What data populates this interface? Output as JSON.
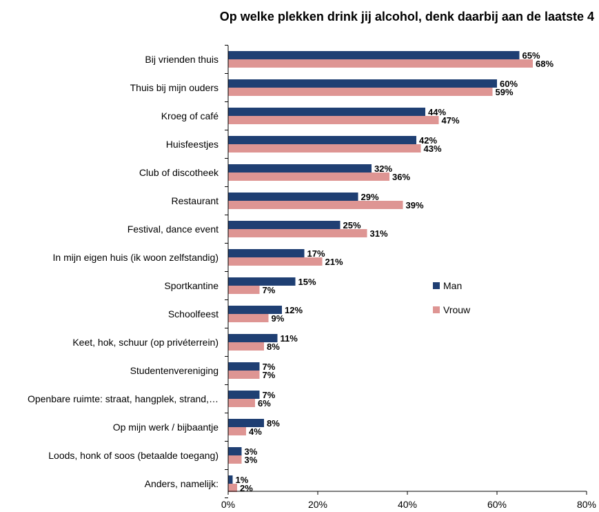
{
  "chart_data": {
    "type": "bar",
    "orientation": "horizontal",
    "title": "Op welke plekken drink jij alcohol, denk daarbij aan de laatste 4",
    "xlabel": "",
    "ylabel": "",
    "xlim": [
      0,
      80
    ],
    "x_ticks": [
      "0%",
      "20%",
      "40%",
      "60%",
      "80%"
    ],
    "grid": false,
    "legend_position": "right",
    "categories": [
      "Bij vrienden thuis",
      "Thuis bij mijn ouders",
      "Kroeg of café",
      "Huisfeestjes",
      "Club of discotheek",
      "Restaurant",
      "Festival, dance event",
      "In mijn eigen huis (ik woon zelfstandig)",
      "Sportkantine",
      "Schoolfeest",
      "Keet, hok, schuur (op privéterrein)",
      "Studentenvereniging",
      "Openbare ruimte: straat, hangplek, strand,…",
      "Op mijn werk / bijbaantje",
      "Loods, honk of soos (betaalde toegang)",
      "Anders, namelijk:"
    ],
    "series": [
      {
        "name": "Man",
        "color": "#1f3f73",
        "values": [
          65,
          60,
          44,
          42,
          32,
          29,
          25,
          17,
          15,
          12,
          11,
          7,
          7,
          8,
          3,
          1
        ],
        "labels": [
          "65%",
          "60%",
          "44%",
          "42%",
          "32%",
          "29%",
          "25%",
          "17%",
          "15%",
          "12%",
          "11%",
          "7%",
          "7%",
          "8%",
          "3%",
          "1%"
        ]
      },
      {
        "name": "Vrouw",
        "color": "#de9593",
        "values": [
          68,
          59,
          47,
          43,
          36,
          39,
          31,
          21,
          7,
          9,
          8,
          7,
          6,
          4,
          3,
          2
        ],
        "labels": [
          "68%",
          "59%",
          "47%",
          "43%",
          "36%",
          "39%",
          "31%",
          "21%",
          "7%",
          "9%",
          "8%",
          "7%",
          "6%",
          "4%",
          "3%",
          "2%"
        ]
      }
    ]
  }
}
